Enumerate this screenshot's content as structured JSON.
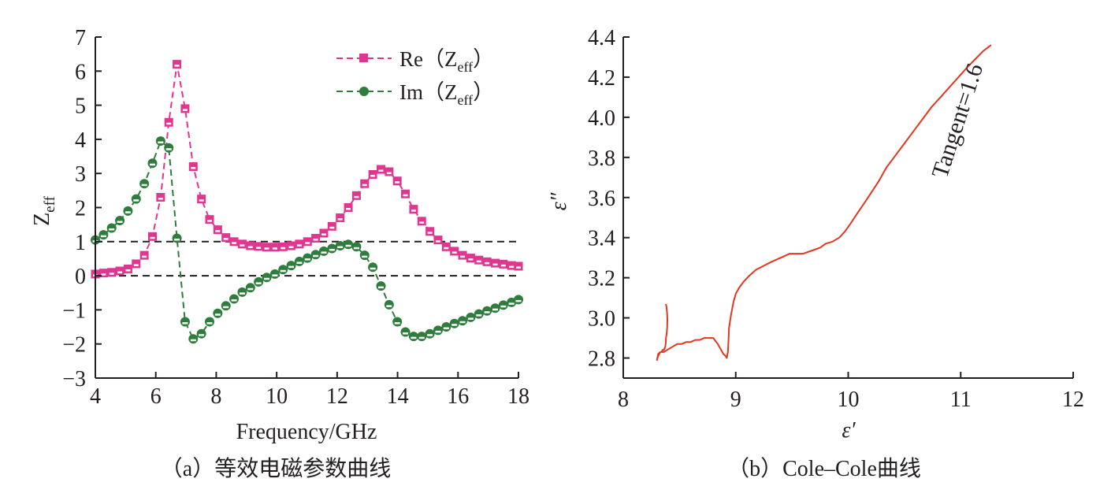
{
  "chart_data": [
    {
      "type": "line",
      "caption": "（a）等效电磁参数曲线",
      "xlabel": "Frequency/GHz",
      "ylabel": "Z",
      "ylabel_sub": "eff",
      "xlim": [
        4,
        18
      ],
      "ylim": [
        -3,
        7
      ],
      "xticks": [
        4,
        6,
        8,
        10,
        12,
        14,
        16,
        18
      ],
      "yticks": [
        7,
        6,
        5,
        4,
        3,
        2,
        1,
        0,
        -1,
        -2,
        -3
      ],
      "reference_lines": [
        1,
        0
      ],
      "legend_position": "top-right",
      "colors": {
        "re": "#e0368f",
        "im": "#2e7d3c",
        "axis": "#231f20",
        "ref": "#231f20"
      },
      "series": [
        {
          "name": "Re（Z",
          "name_sub": "eff",
          "name_close": "）",
          "marker": "square",
          "x": [
            4.0,
            4.27,
            4.54,
            4.81,
            5.08,
            5.35,
            5.62,
            5.89,
            6.16,
            6.43,
            6.7,
            6.97,
            7.24,
            7.51,
            7.78,
            8.05,
            8.32,
            8.59,
            8.86,
            9.13,
            9.4,
            9.67,
            9.94,
            10.21,
            10.48,
            10.75,
            11.02,
            11.29,
            11.56,
            11.83,
            12.1,
            12.37,
            12.64,
            12.91,
            13.18,
            13.45,
            13.72,
            13.99,
            14.26,
            14.53,
            14.8,
            15.07,
            15.34,
            15.61,
            15.88,
            16.15,
            16.42,
            16.69,
            16.96,
            17.23,
            17.5,
            17.77,
            18.0
          ],
          "y": [
            0.05,
            0.08,
            0.1,
            0.14,
            0.2,
            0.35,
            0.6,
            1.15,
            2.3,
            4.5,
            6.2,
            4.9,
            3.2,
            2.25,
            1.65,
            1.35,
            1.12,
            1.0,
            0.93,
            0.88,
            0.86,
            0.84,
            0.84,
            0.85,
            0.88,
            0.93,
            1.0,
            1.1,
            1.25,
            1.45,
            1.7,
            2.0,
            2.35,
            2.7,
            2.97,
            3.12,
            3.05,
            2.78,
            2.4,
            1.95,
            1.6,
            1.3,
            1.05,
            0.85,
            0.72,
            0.6,
            0.52,
            0.46,
            0.41,
            0.37,
            0.34,
            0.3,
            0.28
          ]
        },
        {
          "name": "Im（Z",
          "name_sub": "eff",
          "name_close": "）",
          "marker": "circle",
          "x": [
            4.0,
            4.27,
            4.54,
            4.81,
            5.08,
            5.35,
            5.62,
            5.89,
            6.16,
            6.43,
            6.7,
            6.97,
            7.24,
            7.51,
            7.78,
            8.05,
            8.32,
            8.59,
            8.86,
            9.13,
            9.4,
            9.67,
            9.94,
            10.21,
            10.48,
            10.75,
            11.02,
            11.29,
            11.56,
            11.83,
            12.1,
            12.37,
            12.64,
            12.91,
            13.18,
            13.45,
            13.72,
            13.99,
            14.26,
            14.53,
            14.8,
            15.07,
            15.34,
            15.61,
            15.88,
            16.15,
            16.42,
            16.69,
            16.96,
            17.23,
            17.5,
            17.77,
            18.0
          ],
          "y": [
            1.05,
            1.2,
            1.4,
            1.62,
            1.9,
            2.25,
            2.7,
            3.3,
            3.95,
            3.75,
            1.1,
            -1.35,
            -1.85,
            -1.7,
            -1.35,
            -1.1,
            -0.88,
            -0.68,
            -0.48,
            -0.35,
            -0.18,
            -0.05,
            0.05,
            0.18,
            0.3,
            0.42,
            0.52,
            0.62,
            0.72,
            0.8,
            0.88,
            0.92,
            0.85,
            0.6,
            0.25,
            -0.3,
            -0.85,
            -1.35,
            -1.65,
            -1.78,
            -1.78,
            -1.7,
            -1.6,
            -1.5,
            -1.4,
            -1.32,
            -1.22,
            -1.12,
            -1.03,
            -0.95,
            -0.86,
            -0.78,
            -0.7
          ]
        }
      ]
    },
    {
      "type": "line",
      "caption": "（b）Cole–Cole曲线",
      "xlabel": "ε′",
      "ylabel": "ε″",
      "xlim": [
        8,
        12
      ],
      "ylim": [
        2.7,
        4.4
      ],
      "xticks": [
        8,
        9,
        10,
        11,
        12
      ],
      "yticks": [
        4.4,
        4.2,
        4.0,
        3.8,
        3.6,
        3.4,
        3.2,
        3.0,
        2.8
      ],
      "annotation": "Tangent=1.6",
      "colors": {
        "line": "#e3371e",
        "axis": "#231f20"
      },
      "series": [
        {
          "x": [
            8.38,
            8.385,
            8.39,
            8.392,
            8.39,
            8.385,
            8.38,
            8.378,
            8.375,
            8.37,
            8.36,
            8.35,
            8.34,
            8.33,
            8.32,
            8.31,
            8.305,
            8.3,
            8.31,
            8.33,
            8.36,
            8.39,
            8.42,
            8.45,
            8.48,
            8.52,
            8.56,
            8.6,
            8.64,
            8.68,
            8.72,
            8.76,
            8.8,
            8.84,
            8.87,
            8.89,
            8.91,
            8.92,
            8.93,
            8.935,
            8.94,
            8.96,
            8.98,
            9.0,
            9.03,
            9.07,
            9.12,
            9.18,
            9.25,
            9.32,
            9.4,
            9.48,
            9.55,
            9.6,
            9.65,
            9.7,
            9.75,
            9.8,
            9.86,
            9.92,
            9.97,
            10.02,
            10.08,
            10.14,
            10.2,
            10.27,
            10.34,
            10.42,
            10.5,
            10.58,
            10.66,
            10.74,
            10.82,
            10.9,
            10.98,
            11.06,
            11.13,
            11.2,
            11.27
          ],
          "y": [
            3.07,
            3.05,
            3.02,
            2.99,
            2.95,
            2.92,
            2.9,
            2.88,
            2.86,
            2.85,
            2.84,
            2.84,
            2.83,
            2.83,
            2.82,
            2.81,
            2.8,
            2.79,
            2.82,
            2.83,
            2.83,
            2.84,
            2.85,
            2.86,
            2.87,
            2.87,
            2.88,
            2.88,
            2.89,
            2.89,
            2.9,
            2.9,
            2.9,
            2.87,
            2.84,
            2.82,
            2.81,
            2.8,
            2.83,
            2.88,
            2.95,
            3.02,
            3.08,
            3.12,
            3.15,
            3.18,
            3.21,
            3.24,
            3.26,
            3.28,
            3.3,
            3.32,
            3.32,
            3.32,
            3.33,
            3.34,
            3.35,
            3.37,
            3.38,
            3.4,
            3.43,
            3.47,
            3.52,
            3.57,
            3.62,
            3.68,
            3.75,
            3.81,
            3.87,
            3.93,
            3.99,
            4.05,
            4.1,
            4.15,
            4.2,
            4.25,
            4.29,
            4.33,
            4.36
          ]
        }
      ]
    }
  ]
}
